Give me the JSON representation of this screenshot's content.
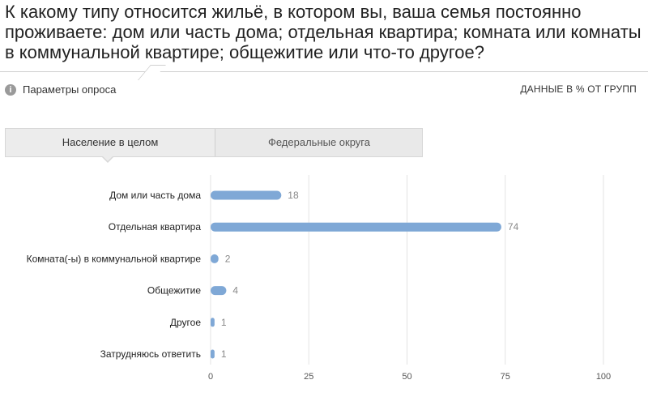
{
  "title": "К какому типу относится жильё, в котором вы, ваша семья постоянно проживаете: дом или часть дома; отдельная квартира; комната или комнаты в коммунальной квартире; общежитие или что-то другое?",
  "params": {
    "info_icon": "info-icon",
    "label": "Параметры опроса"
  },
  "units_note": "ДАННЫЕ В % ОТ ГРУПП",
  "tabs": [
    {
      "label": "Население в целом",
      "active": true
    },
    {
      "label": "Федеральные округа",
      "active": false
    }
  ],
  "colors": {
    "bar": "#7fa8d6",
    "grid": "#e3e3e3"
  },
  "chart_data": {
    "type": "bar",
    "orientation": "horizontal",
    "categories": [
      "Дом или часть дома",
      "Отдельная квартира",
      "Комната(-ы) в коммунальной квартире",
      "Общежитие",
      "Другое",
      "Затрудняюсь ответить"
    ],
    "values": [
      18,
      74,
      2,
      4,
      1,
      1
    ],
    "xlim": [
      0,
      100
    ],
    "xticks": [
      0,
      25,
      50,
      75,
      100
    ],
    "grid": true
  }
}
